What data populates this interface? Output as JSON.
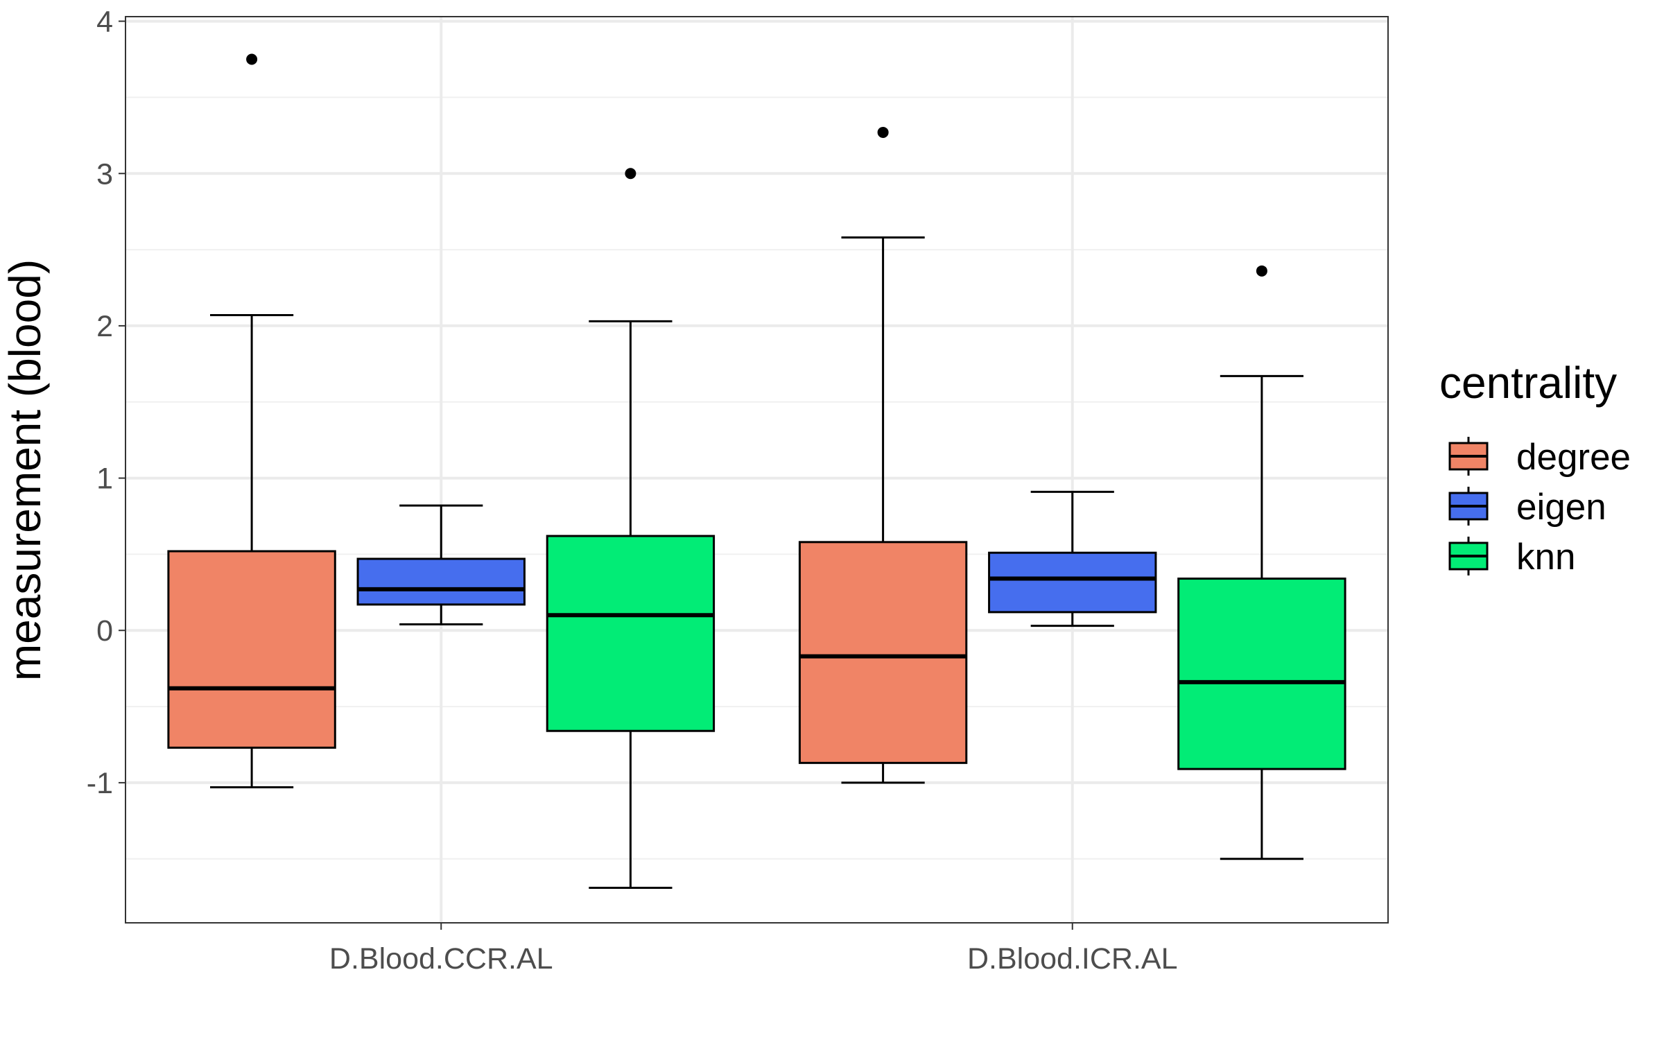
{
  "chart_data": {
    "type": "boxplot",
    "title": "",
    "xlabel": "",
    "ylabel": "measurement (blood)",
    "ylim": [
      -1.92,
      4.03
    ],
    "yticks": [
      -1,
      0,
      1,
      2,
      3,
      4
    ],
    "grid": true,
    "legend_placement": "right",
    "legend_title": "centrality",
    "categories": [
      "D.Blood.CCR.AL",
      "D.Blood.ICR.AL"
    ],
    "series": [
      {
        "name": "degree",
        "color": "#F08466",
        "boxes": [
          {
            "lower_whisker": -1.03,
            "q1": -0.77,
            "median": -0.38,
            "q3": 0.52,
            "upper_whisker": 2.07,
            "outliers": [
              3.75
            ]
          },
          {
            "lower_whisker": -1.0,
            "q1": -0.87,
            "median": -0.17,
            "q3": 0.58,
            "upper_whisker": 2.58,
            "outliers": [
              3.27
            ]
          }
        ]
      },
      {
        "name": "eigen",
        "color": "#466EEE",
        "boxes": [
          {
            "lower_whisker": 0.04,
            "q1": 0.17,
            "median": 0.27,
            "q3": 0.47,
            "upper_whisker": 0.82,
            "outliers": []
          },
          {
            "lower_whisker": 0.03,
            "q1": 0.12,
            "median": 0.34,
            "q3": 0.51,
            "upper_whisker": 0.91,
            "outliers": []
          }
        ]
      },
      {
        "name": "knn",
        "color": "#02EC76",
        "boxes": [
          {
            "lower_whisker": -1.69,
            "q1": -0.66,
            "median": 0.1,
            "q3": 0.62,
            "upper_whisker": 2.03,
            "outliers": [
              3.0
            ]
          },
          {
            "lower_whisker": -1.5,
            "q1": -0.91,
            "median": -0.34,
            "q3": 0.34,
            "upper_whisker": 1.67,
            "outliers": [
              2.36
            ]
          }
        ]
      }
    ]
  }
}
